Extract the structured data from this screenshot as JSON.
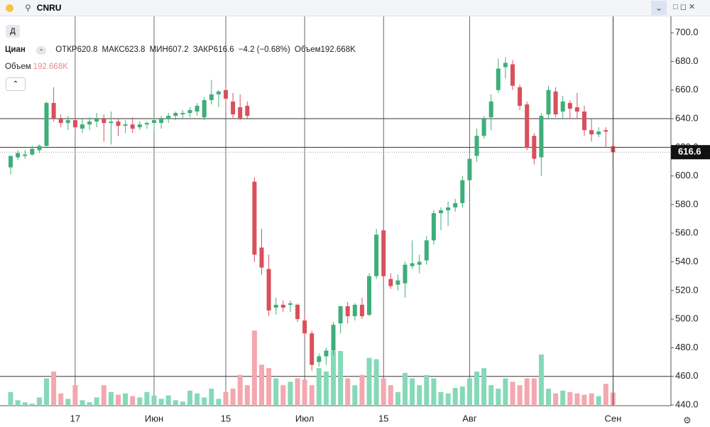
{
  "toolbar": {
    "symbol": "CNRU",
    "interval_button": "Д"
  },
  "chart_data": {
    "type": "candlestick",
    "categories": [
      null,
      null,
      null,
      null,
      null,
      null,
      null,
      null,
      null,
      "17",
      null,
      null,
      null,
      null,
      null,
      null,
      null,
      null,
      null,
      null,
      "Июн",
      null,
      null,
      null,
      null,
      null,
      null,
      null,
      null,
      null,
      "15",
      null,
      null,
      null,
      null,
      null,
      null,
      null,
      null,
      null,
      null,
      "Июл",
      null,
      null,
      null,
      null,
      null,
      null,
      null,
      null,
      null,
      null,
      "15",
      null,
      null,
      null,
      null,
      null,
      null,
      null,
      null,
      null,
      null,
      null,
      "Авг",
      null,
      null,
      null,
      null,
      null,
      null,
      null,
      null,
      null,
      null,
      null,
      null,
      null,
      null,
      null,
      null,
      null,
      null,
      null,
      "Сен"
    ],
    "series": [
      {
        "name": "Циан",
        "open": [
          606,
          613,
          614,
          615,
          618,
          621,
          651,
          640,
          637,
          639,
          633,
          636,
          638,
          640,
          637,
          638,
          635,
          636,
          634,
          636,
          637,
          637,
          640,
          642,
          643,
          644,
          645,
          641,
          653,
          657,
          660,
          652,
          648,
          649,
          596,
          550,
          535,
          508,
          510,
          510,
          510,
          499,
          490,
          470,
          474,
          478,
          497,
          509,
          502,
          510,
          503,
          530,
          562,
          528,
          524,
          525,
          537,
          538,
          541,
          555,
          574,
          576,
          578,
          581,
          597,
          614,
          628,
          641,
          660,
          676,
          678,
          662,
          650,
          628,
          613,
          643,
          659,
          645,
          651,
          648,
          645,
          632,
          629,
          632,
          620.8
        ],
        "high": [
          614,
          618,
          618,
          621,
          622,
          652,
          662,
          643,
          642,
          642,
          640,
          641,
          644,
          643,
          645,
          640,
          639,
          641,
          638,
          638,
          641,
          642,
          644,
          645,
          646,
          648,
          651,
          655,
          667,
          660,
          662,
          658,
          657,
          652,
          599,
          563,
          545,
          515,
          513,
          513,
          511,
          503,
          492,
          476,
          480,
          498,
          509,
          512,
          511,
          515,
          532,
          563,
          563,
          532,
          531,
          540,
          555,
          545,
          558,
          576,
          578,
          582,
          584,
          600,
          616,
          633,
          642,
          657,
          682,
          683,
          681,
          664,
          652,
          630,
          644,
          663,
          662,
          656,
          653,
          658,
          649,
          640,
          634,
          634,
          623.8
        ],
        "low": [
          601,
          611,
          612,
          614,
          616,
          620,
          638,
          634,
          632,
          629,
          630,
          632,
          634,
          624,
          622,
          628,
          630,
          630,
          632,
          633,
          630,
          633,
          637,
          639,
          640,
          641,
          642,
          639,
          650,
          648,
          646,
          640,
          639,
          640,
          540,
          531,
          502,
          503,
          505,
          505,
          498,
          487,
          464,
          467,
          468,
          475,
          490,
          497,
          499,
          500,
          502,
          528,
          525,
          521,
          520,
          515,
          535,
          532,
          538,
          552,
          562,
          565,
          575,
          578,
          595,
          610,
          626,
          632,
          658,
          668,
          660,
          646,
          618,
          608,
          600,
          640,
          641,
          640,
          640,
          640,
          628,
          624,
          627,
          620,
          607.2
        ],
        "close": [
          614,
          616,
          615,
          619,
          621,
          651,
          640,
          637,
          639,
          634,
          636,
          638,
          640,
          637,
          638,
          635,
          636,
          633,
          636,
          637,
          639,
          640,
          642,
          644,
          644,
          646,
          649,
          653,
          657,
          659,
          654,
          643,
          640,
          642,
          545,
          536,
          506,
          510,
          508,
          511,
          500,
          490,
          468,
          474,
          478,
          496,
          509,
          502,
          510,
          502,
          530,
          559,
          530,
          523,
          527,
          538,
          539,
          540,
          555,
          574,
          576,
          578,
          581,
          597,
          612,
          628,
          640,
          652,
          675,
          679,
          663,
          649,
          620,
          612,
          642,
          660,
          643,
          652,
          647,
          645,
          632,
          629,
          631,
          631,
          616.6
        ]
      },
      {
        "name": "Объем",
        "axis": "volume",
        "values": [
          200,
          80,
          50,
          30,
          120,
          400,
          500,
          180,
          100,
          300,
          80,
          50,
          120,
          300,
          200,
          160,
          180,
          140,
          120,
          200,
          150,
          100,
          150,
          80,
          60,
          220,
          180,
          120,
          250,
          100,
          200,
          250,
          450,
          300,
          1100,
          600,
          550,
          400,
          300,
          350,
          400,
          380,
          300,
          550,
          500,
          800,
          800,
          400,
          300,
          450,
          700,
          680,
          400,
          300,
          200,
          480,
          400,
          300,
          450,
          400,
          200,
          180,
          260,
          280,
          400,
          500,
          550,
          300,
          250,
          400,
          350,
          300,
          400,
          400,
          750,
          250,
          180,
          220,
          200,
          180,
          160,
          180,
          140,
          320,
          192.668
        ],
        "last_label": "192.668K"
      }
    ],
    "up_color": "#3fae7a",
    "down_color": "#d9505b",
    "volume_up_color": "#86d9b8",
    "volume_down_color": "#f4a7ae",
    "ylim": [
      439.5,
      712
    ],
    "volume_ylim": [
      0,
      5710
    ],
    "yticks": [
      {
        "value": 440,
        "label": "440.0"
      },
      {
        "value": 460,
        "label": "460.0"
      },
      {
        "value": 480,
        "label": "480.0"
      },
      {
        "value": 500,
        "label": "500.0"
      },
      {
        "value": 520,
        "label": "520.0"
      },
      {
        "value": 540,
        "label": "540.0"
      },
      {
        "value": 560,
        "label": "560.0"
      },
      {
        "value": 580,
        "label": "580.0"
      },
      {
        "value": 600,
        "label": "600.0"
      },
      {
        "value": 620,
        "label": "620.0"
      },
      {
        "value": 640,
        "label": "640.0"
      },
      {
        "value": 660,
        "label": "660.0"
      },
      {
        "value": 680,
        "label": "680.0"
      },
      {
        "value": 700,
        "label": "700.0"
      }
    ],
    "levels": [
      640,
      620,
      460
    ],
    "legend": {
      "open_label": "ОТКР",
      "high_label": "МАКС",
      "low_label": "МИН",
      "close_label": "ЗАКР",
      "change": "−4.2 (−0.68%)",
      "volume_label": "Объем"
    }
  }
}
